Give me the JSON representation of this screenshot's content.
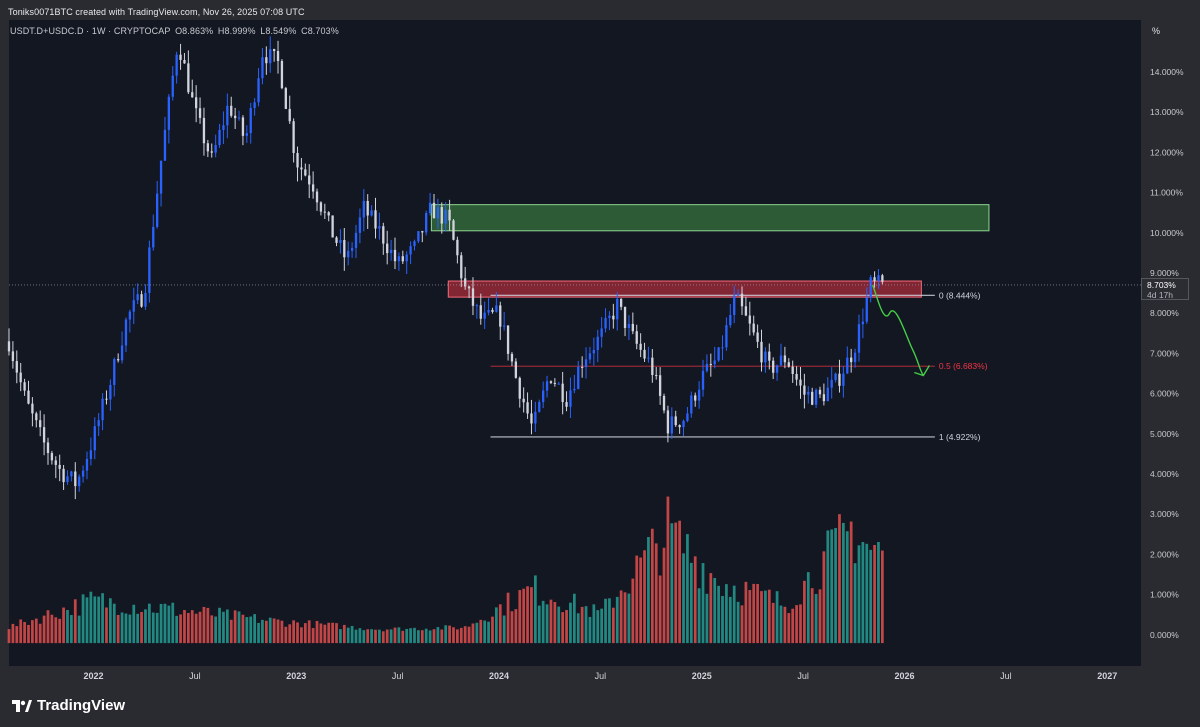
{
  "header": {
    "created_text": "Toniks0071BTC created with TradingView.com, Nov 26, 2025 07:08 UTC",
    "symbol": "USDT.D+USDC.D · 1W · CRYPTOCAP",
    "ohlc": {
      "open": "O8.863%",
      "high": "H8.999%",
      "low": "L8.549%",
      "close": "C8.703%"
    }
  },
  "footer": {
    "brand": "TradingView"
  },
  "price_scale": {
    "unit": "%"
  },
  "last_price": {
    "value": "8.703%",
    "countdown": "4d 17h"
  },
  "colors": {
    "background": "#131722",
    "up_candle": "#2962ff",
    "down_candle": "#d1d4dc",
    "volume_up": "#26a69a",
    "volume_down": "#ef5350",
    "supply_zone": "#4caf50",
    "resistance_zone": "#f23645",
    "fib_mid_line": "#f23645",
    "projection_arrow": "#43ce46"
  },
  "chart_data": {
    "type": "candlestick",
    "interval": "1W",
    "x_range": [
      "2021-08",
      "2027-03"
    ],
    "ylim": [
      3.5,
      15.0
    ],
    "y_ticks": [
      "14.000%",
      "13.000%",
      "12.000%",
      "11.000%",
      "10.000%",
      "9.000%",
      "8.000%",
      "7.000%",
      "6.000%",
      "5.000%",
      "4.000%"
    ],
    "x_ticks": [
      "2022",
      "Jul",
      "2023",
      "Jul",
      "2024",
      "Jul",
      "2025",
      "Jul",
      "2026",
      "Jul",
      "2027"
    ],
    "price_path": [
      [
        "2021-08",
        7.3
      ],
      [
        "2021-09",
        5.8
      ],
      [
        "2021-10",
        4.8
      ],
      [
        "2021-11",
        4.1
      ],
      [
        "2021-12",
        3.75
      ],
      [
        "2022-01",
        4.9
      ],
      [
        "2022-02",
        6.3
      ],
      [
        "2022-03",
        7.9
      ],
      [
        "2022-04",
        8.5
      ],
      [
        "2022-05",
        11.8
      ],
      [
        "2022-06",
        14.8
      ],
      [
        "2022-07",
        13.0
      ],
      [
        "2022-08",
        11.8
      ],
      [
        "2022-09",
        13.2
      ],
      [
        "2022-10",
        12.3
      ],
      [
        "2022-11",
        14.5
      ],
      [
        "2022-12",
        14.2
      ],
      [
        "2023-01",
        11.8
      ],
      [
        "2023-02",
        11.2
      ],
      [
        "2023-03",
        10.1
      ],
      [
        "2023-04",
        9.3
      ],
      [
        "2023-05",
        10.6
      ],
      [
        "2023-06",
        10.0
      ],
      [
        "2023-07",
        9.2
      ],
      [
        "2023-08",
        9.6
      ],
      [
        "2023-09",
        10.6
      ],
      [
        "2023-10",
        10.3
      ],
      [
        "2023-11",
        8.6
      ],
      [
        "2023-12",
        7.8
      ],
      [
        "2024-01",
        8.0
      ],
      [
        "2024-02",
        6.4
      ],
      [
        "2024-03",
        5.1
      ],
      [
        "2024-04",
        6.5
      ],
      [
        "2024-05",
        5.9
      ],
      [
        "2024-06",
        6.9
      ],
      [
        "2024-07",
        7.4
      ],
      [
        "2024-08",
        8.2
      ],
      [
        "2024-09",
        7.3
      ],
      [
        "2024-10",
        6.7
      ],
      [
        "2024-11",
        5.2
      ],
      [
        "2024-12",
        5.4
      ],
      [
        "2025-01",
        6.4
      ],
      [
        "2025-02",
        6.9
      ],
      [
        "2025-03",
        8.4
      ],
      [
        "2025-04",
        7.5
      ],
      [
        "2025-05",
        6.6
      ],
      [
        "2025-06",
        6.9
      ],
      [
        "2025-07",
        6.0
      ],
      [
        "2025-08",
        5.9
      ],
      [
        "2025-09",
        6.3
      ],
      [
        "2025-10",
        7.1
      ],
      [
        "2025-11",
        8.7
      ]
    ],
    "zones": [
      {
        "type": "supply",
        "from": "2023-09",
        "to": "2026-06",
        "y_low": 10.05,
        "y_high": 10.7
      },
      {
        "type": "resistance",
        "from": "2023-10",
        "to": "2026-02",
        "y_low": 8.4,
        "y_high": 8.8
      }
    ],
    "fibonacci": [
      {
        "level": "0",
        "value": "8.444%",
        "label": "0 (8.444%)"
      },
      {
        "level": "0.5",
        "value": "6.683%",
        "label": "0.5 (6.683%)"
      },
      {
        "level": "1",
        "value": "4.922%",
        "label": "1 (4.922%)"
      }
    ],
    "projection": [
      [
        "2025-11",
        8.7
      ],
      [
        "2025-12",
        8.0
      ],
      [
        "2026-01",
        7.3
      ],
      [
        "2026-02",
        6.6
      ]
    ],
    "volume": {
      "y_ticks": [
        "3.000%",
        "2.000%",
        "1.000%",
        "0.000%"
      ],
      "ylim": [
        -0.3,
        3.5
      ],
      "path": [
        [
          "2021-08",
          0.2
        ],
        [
          "2022-01",
          0.9
        ],
        [
          "2022-06",
          0.65
        ],
        [
          "2022-12",
          0.35
        ],
        [
          "2023-06",
          0.15
        ],
        [
          "2023-11",
          0.2
        ],
        [
          "2024-03",
          1.2
        ],
        [
          "2024-07",
          0.55
        ],
        [
          "2024-11",
          2.7
        ],
        [
          "2025-02",
          1.4
        ],
        [
          "2025-06",
          0.8
        ],
        [
          "2025-10",
          2.8
        ],
        [
          "2025-11",
          2.2
        ]
      ]
    }
  }
}
